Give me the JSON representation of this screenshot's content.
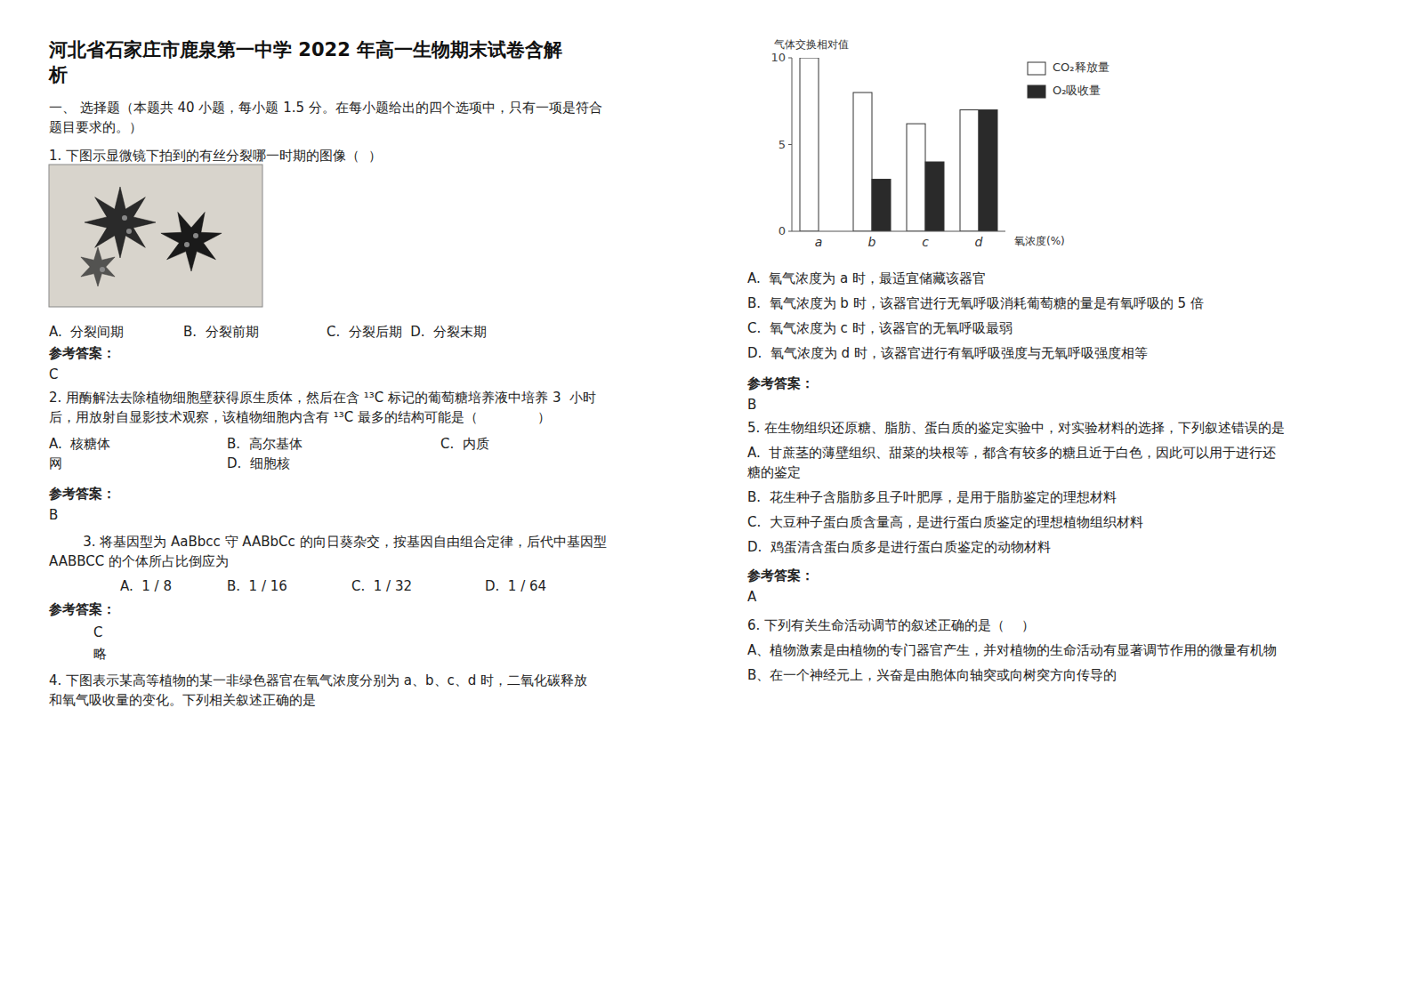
{
  "page": {
    "title": [
      "河北省石家庄市鹿泉第一中学 2022 年高一生物期末试卷含解",
      "析"
    ],
    "left": [
      [
        "一、 选择题（本题共 40 小题，每小题 1.5 分。在每小题给出的四个选项中，只有一项是符合"
      ],
      [
        "题目要求的。）"
      ],
      [
        "1. 下图示显微镜下拍到的有丝分裂哪一时期的图像（  ）"
      ],
      [
        "A.  分裂间期              B.  分裂前期                C.  分裂后期  D.  分裂末期"
      ],
      [
        "参考答案："
      ],
      [
        "C"
      ],
      [
        "2. 用酶解法去除植物细胞壁获得原生质体，然后在含 ¹³C 标记的葡萄糖培养液中培养 3  小时"
      ],
      [
        "后，用放射自显影技术观察，该植物细胞内含有 ¹³C 最多的结构可能是（              ）"
      ],
      [
        "A.  核糖体",
        "B.  高尔基体",
        "C.  内质"
      ],
      [
        "网",
        "D.  细胞核"
      ],
      [
        "参考答案："
      ],
      [
        "B"
      ],
      [
        "        3. 将基因型为 AaBbcc 守 AABbCc 的向日葵杂交，按基因自由组合定律，后代中基因型"
      ],
      [
        "AABBCC 的个体所占比倒应为"
      ],
      [
        "A.  1 / 8",
        "B.  1 / 16",
        "C.  1 / 32",
        "D.  1 / 64"
      ],
      [
        "参考答案："
      ],
      [
        "C"
      ],
      [
        "略"
      ],
      [
        "4. 下图表示某高等植物的某一非绿色器官在氧气浓度分别为 a、b、c、d 时，二氧化碳释放"
      ],
      [
        "和氧气吸收量的变化。下列相关叙述正确的是"
      ]
    ],
    "right": [
      [
        "A.  氧气浓度为 a 时，最适宜储藏该器官"
      ],
      [
        "B.  氧气浓度为 b 时，该器官进行无氧呼吸消耗葡萄糖的量是有氧呼吸的 5 倍"
      ],
      [
        "C.  氧气浓度为 c 时，该器官的无氧呼吸最弱"
      ],
      [
        "D.  氧气浓度为 d 时，该器官进行有氧呼吸强度与无氧呼吸强度相等"
      ],
      [
        "参考答案："
      ],
      [
        "B"
      ],
      [
        "5. 在生物组织还原糖、脂肪、蛋白质的鉴定实验中，对实验材料的选择，下列叙述错误的是"
      ],
      [
        "A.  甘蔗茎的薄壁组织、甜菜的块根等，都含有较多的糖且近于白色，因此可以用于进行还"
      ],
      [
        "糖的鉴定"
      ],
      [
        "B.  花生种子含脂肪多且子叶肥厚，是用于脂肪鉴定的理想材料"
      ],
      [
        "C.  大豆种子蛋白质含量高，是进行蛋白质鉴定的理想植物组织材料"
      ],
      [
        "D.  鸡蛋清含蛋白质多是进行蛋白质鉴定的动物材料"
      ],
      [
        "参考答案："
      ],
      [
        "A"
      ],
      [
        "6. 下列有关生命活动调节的叙述正确的是（    ）"
      ],
      [
        "A、植物激素是由植物的专门器官产生，并对植物的生命活动有显著调节作用的微量有机物"
      ],
      [
        "B、在一个神经元上，兴奋是由胞体向轴突或向树突方向传导的"
      ]
    ]
  },
  "chart_data": {
    "type": "bar",
    "categories": [
      "a",
      "b",
      "c",
      "d"
    ],
    "series": [
      {
        "name": "CO₂释放量",
        "color": "#ffffff",
        "values": [
          10.0,
          8.0,
          6.2,
          7.0
        ]
      },
      {
        "name": "O₂吸收量",
        "color": "#2a2a2a",
        "values": [
          0.0,
          3.0,
          4.0,
          7.0
        ]
      }
    ],
    "x_label": "氧浓度(%)",
    "y_label": "气体交换相对值",
    "ylim": [
      0,
      10
    ],
    "yticks": [
      0,
      5,
      10
    ],
    "legend": "right",
    "grid": false
  }
}
